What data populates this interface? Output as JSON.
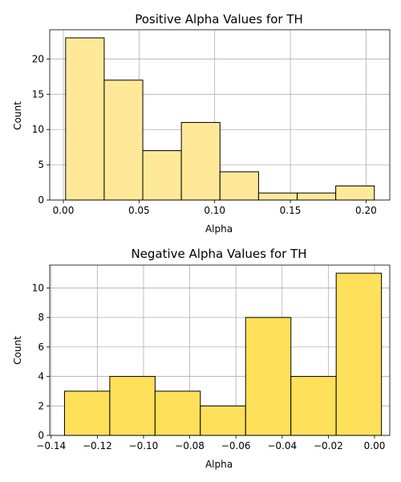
{
  "chart_data": [
    {
      "type": "bar",
      "subtype": "histogram",
      "title": "Positive Alpha Values for TH",
      "xlabel": "Alpha",
      "ylabel": "Count",
      "bins": [
        {
          "x0": 0.0015,
          "x1": 0.027,
          "count": 23
        },
        {
          "x0": 0.027,
          "x1": 0.0525,
          "count": 17
        },
        {
          "x0": 0.0525,
          "x1": 0.078,
          "count": 7
        },
        {
          "x0": 0.078,
          "x1": 0.1035,
          "count": 11
        },
        {
          "x0": 0.1035,
          "x1": 0.129,
          "count": 4
        },
        {
          "x0": 0.129,
          "x1": 0.1545,
          "count": 1
        },
        {
          "x0": 0.1545,
          "x1": 0.18,
          "count": 1
        },
        {
          "x0": 0.18,
          "x1": 0.2055,
          "count": 2
        }
      ],
      "xlim": [
        -0.009,
        0.2157
      ],
      "ylim": [
        0,
        24.15
      ],
      "xticks": [
        0.0,
        0.05,
        0.1,
        0.15,
        0.2
      ],
      "xtick_labels": [
        "0.00",
        "0.05",
        "0.10",
        "0.15",
        "0.20"
      ],
      "yticks": [
        0,
        5,
        10,
        15,
        20
      ],
      "ytick_labels": [
        "0",
        "5",
        "10",
        "15",
        "20"
      ],
      "grid": true,
      "color": "#FFE999"
    },
    {
      "type": "bar",
      "subtype": "histogram",
      "title": "Negative Alpha Values for TH",
      "xlabel": "Alpha",
      "ylabel": "Count",
      "bins": [
        {
          "x0": -0.1342,
          "x1": -0.1146,
          "count": 3
        },
        {
          "x0": -0.1146,
          "x1": -0.095,
          "count": 4
        },
        {
          "x0": -0.095,
          "x1": -0.0754,
          "count": 3
        },
        {
          "x0": -0.0754,
          "x1": -0.0558,
          "count": 2
        },
        {
          "x0": -0.0558,
          "x1": -0.0362,
          "count": 8
        },
        {
          "x0": -0.0362,
          "x1": -0.0166,
          "count": 4
        },
        {
          "x0": -0.0166,
          "x1": 0.003,
          "count": 11
        }
      ],
      "xlim": [
        -0.1406,
        0.0066
      ],
      "ylim": [
        0,
        11.55
      ],
      "xticks": [
        -0.14,
        -0.12,
        -0.1,
        -0.08,
        -0.06,
        -0.04,
        -0.02,
        0.0
      ],
      "xtick_labels": [
        "−0.14",
        "−0.12",
        "−0.10",
        "−0.08",
        "−0.06",
        "−0.04",
        "−0.02",
        "0.00"
      ],
      "yticks": [
        0,
        2,
        4,
        6,
        8,
        10
      ],
      "ytick_labels": [
        "0",
        "2",
        "4",
        "6",
        "8",
        "10"
      ],
      "grid": true,
      "color": "#FFE05A"
    }
  ]
}
